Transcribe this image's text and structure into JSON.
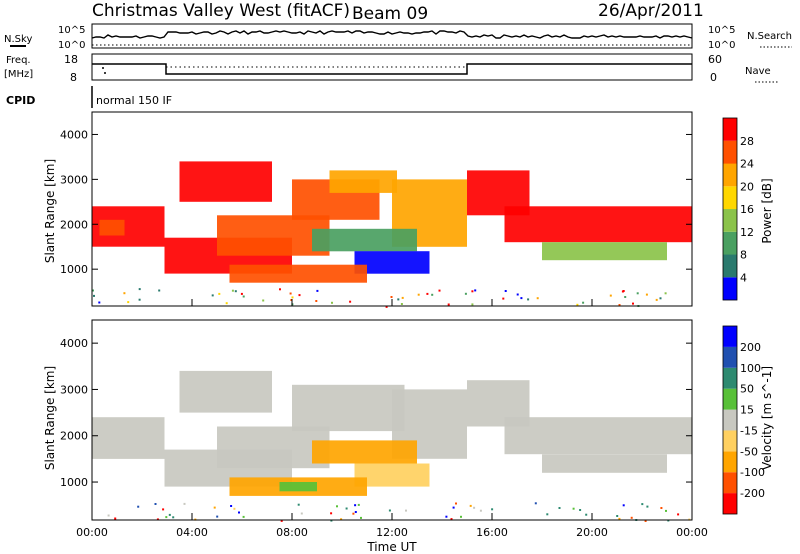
{
  "header": {
    "title": "Christmas Valley West (fitACF)",
    "beam": "Beam 09",
    "date": "26/Apr/2011"
  },
  "aux_panel": {
    "nsky_label": "N.Sky",
    "nsearch_label": "N.Search",
    "nsky_ticks": [
      "10^5",
      "10^0"
    ],
    "nsearch_ticks": [
      "10^5",
      "10^0"
    ],
    "freq_label_line1": "Freq.",
    "freq_label_line2": "[MHz]",
    "freq_ticks": [
      "18",
      "8"
    ],
    "nave_label": "Nave",
    "nave_ticks": [
      "60",
      "0"
    ],
    "cpid_label": "CPID",
    "cpid_value": "normal 150 IF"
  },
  "colors": {
    "power": [
      "#0000ff",
      "#2a7a6e",
      "#4aa061",
      "#8bc34a",
      "#ffd700",
      "#ffa500",
      "#ff5000",
      "#ff0000"
    ],
    "velocity": [
      "#ff0000",
      "#ff5000",
      "#ffa500",
      "#ffd060",
      "#c8c8c0",
      "#58c038",
      "#2d8a70",
      "#2050b0",
      "#0000ff"
    ]
  },
  "chart_data": [
    {
      "type": "heatmap",
      "panel": "power",
      "ylabel": "Slant Range [km]",
      "yticks": [
        1000,
        2000,
        3000,
        4000
      ],
      "ylim": [
        180,
        4500
      ],
      "xlim": [
        0,
        24
      ],
      "colorbar": {
        "label": "Power [dB]",
        "ticks": [
          "4",
          "8",
          "12",
          "16",
          "20",
          "24",
          "28"
        ]
      },
      "bands": [
        {
          "t0": 0.0,
          "t1": 2.9,
          "r0": 1500,
          "r1": 2400,
          "level": 7
        },
        {
          "t0": 0.3,
          "t1": 1.3,
          "r0": 1750,
          "r1": 2100,
          "level": 6
        },
        {
          "t0": 2.9,
          "t1": 8.0,
          "r0": 900,
          "r1": 1700,
          "level": 7
        },
        {
          "t0": 5.0,
          "t1": 9.5,
          "r0": 1300,
          "r1": 2200,
          "level": 6
        },
        {
          "t0": 3.5,
          "t1": 7.2,
          "r0": 2500,
          "r1": 3400,
          "level": 7
        },
        {
          "t0": 8.0,
          "t1": 11.5,
          "r0": 2100,
          "r1": 3000,
          "level": 6
        },
        {
          "t0": 9.5,
          "t1": 12.2,
          "r0": 2700,
          "r1": 3200,
          "level": 5
        },
        {
          "t0": 12.0,
          "t1": 15.0,
          "r0": 1500,
          "r1": 3000,
          "level": 5
        },
        {
          "t0": 8.8,
          "t1": 13.0,
          "r0": 1400,
          "r1": 1900,
          "level": 2
        },
        {
          "t0": 10.5,
          "t1": 13.5,
          "r0": 900,
          "r1": 1400,
          "level": 0
        },
        {
          "t0": 5.5,
          "t1": 11.0,
          "r0": 700,
          "r1": 1100,
          "level": 6
        },
        {
          "t0": 15.0,
          "t1": 17.5,
          "r0": 2200,
          "r1": 3200,
          "level": 7
        },
        {
          "t0": 16.5,
          "t1": 24.0,
          "r0": 1600,
          "r1": 2400,
          "level": 7
        },
        {
          "t0": 18.0,
          "t1": 23.0,
          "r0": 1200,
          "r1": 1600,
          "level": 3
        }
      ]
    },
    {
      "type": "heatmap",
      "panel": "velocity",
      "xlabel": "Time UT",
      "ylabel": "Slant Range [km]",
      "xticks": [
        "00:00",
        "04:00",
        "08:00",
        "12:00",
        "16:00",
        "20:00",
        "00:00"
      ],
      "yticks": [
        1000,
        2000,
        3000,
        4000
      ],
      "ylim": [
        180,
        4500
      ],
      "xlim": [
        0,
        24
      ],
      "colorbar": {
        "label": "Velocity [m s^-1]",
        "ticks": [
          "-200",
          "-100",
          "-50",
          "-15",
          "15",
          "50",
          "100",
          "200"
        ]
      },
      "bands": [
        {
          "t0": 0.0,
          "t1": 2.9,
          "r0": 1500,
          "r1": 2400,
          "level": 4
        },
        {
          "t0": 2.9,
          "t1": 8.0,
          "r0": 900,
          "r1": 1700,
          "level": 4
        },
        {
          "t0": 5.0,
          "t1": 9.5,
          "r0": 1300,
          "r1": 2200,
          "level": 4
        },
        {
          "t0": 3.5,
          "t1": 7.2,
          "r0": 2500,
          "r1": 3400,
          "level": 4
        },
        {
          "t0": 8.0,
          "t1": 12.5,
          "r0": 2100,
          "r1": 3100,
          "level": 4
        },
        {
          "t0": 12.0,
          "t1": 15.0,
          "r0": 1500,
          "r1": 3000,
          "level": 4
        },
        {
          "t0": 8.8,
          "t1": 13.0,
          "r0": 1400,
          "r1": 1900,
          "level": 2
        },
        {
          "t0": 10.5,
          "t1": 13.5,
          "r0": 900,
          "r1": 1400,
          "level": 3
        },
        {
          "t0": 5.5,
          "t1": 11.0,
          "r0": 700,
          "r1": 1100,
          "level": 2
        },
        {
          "t0": 7.5,
          "t1": 9.0,
          "r0": 800,
          "r1": 1000,
          "level": 5
        },
        {
          "t0": 15.0,
          "t1": 17.5,
          "r0": 2200,
          "r1": 3200,
          "level": 4
        },
        {
          "t0": 16.5,
          "t1": 24.0,
          "r0": 1600,
          "r1": 2400,
          "level": 4
        },
        {
          "t0": 18.0,
          "t1": 23.0,
          "r0": 1200,
          "r1": 1600,
          "level": 4
        }
      ]
    }
  ]
}
